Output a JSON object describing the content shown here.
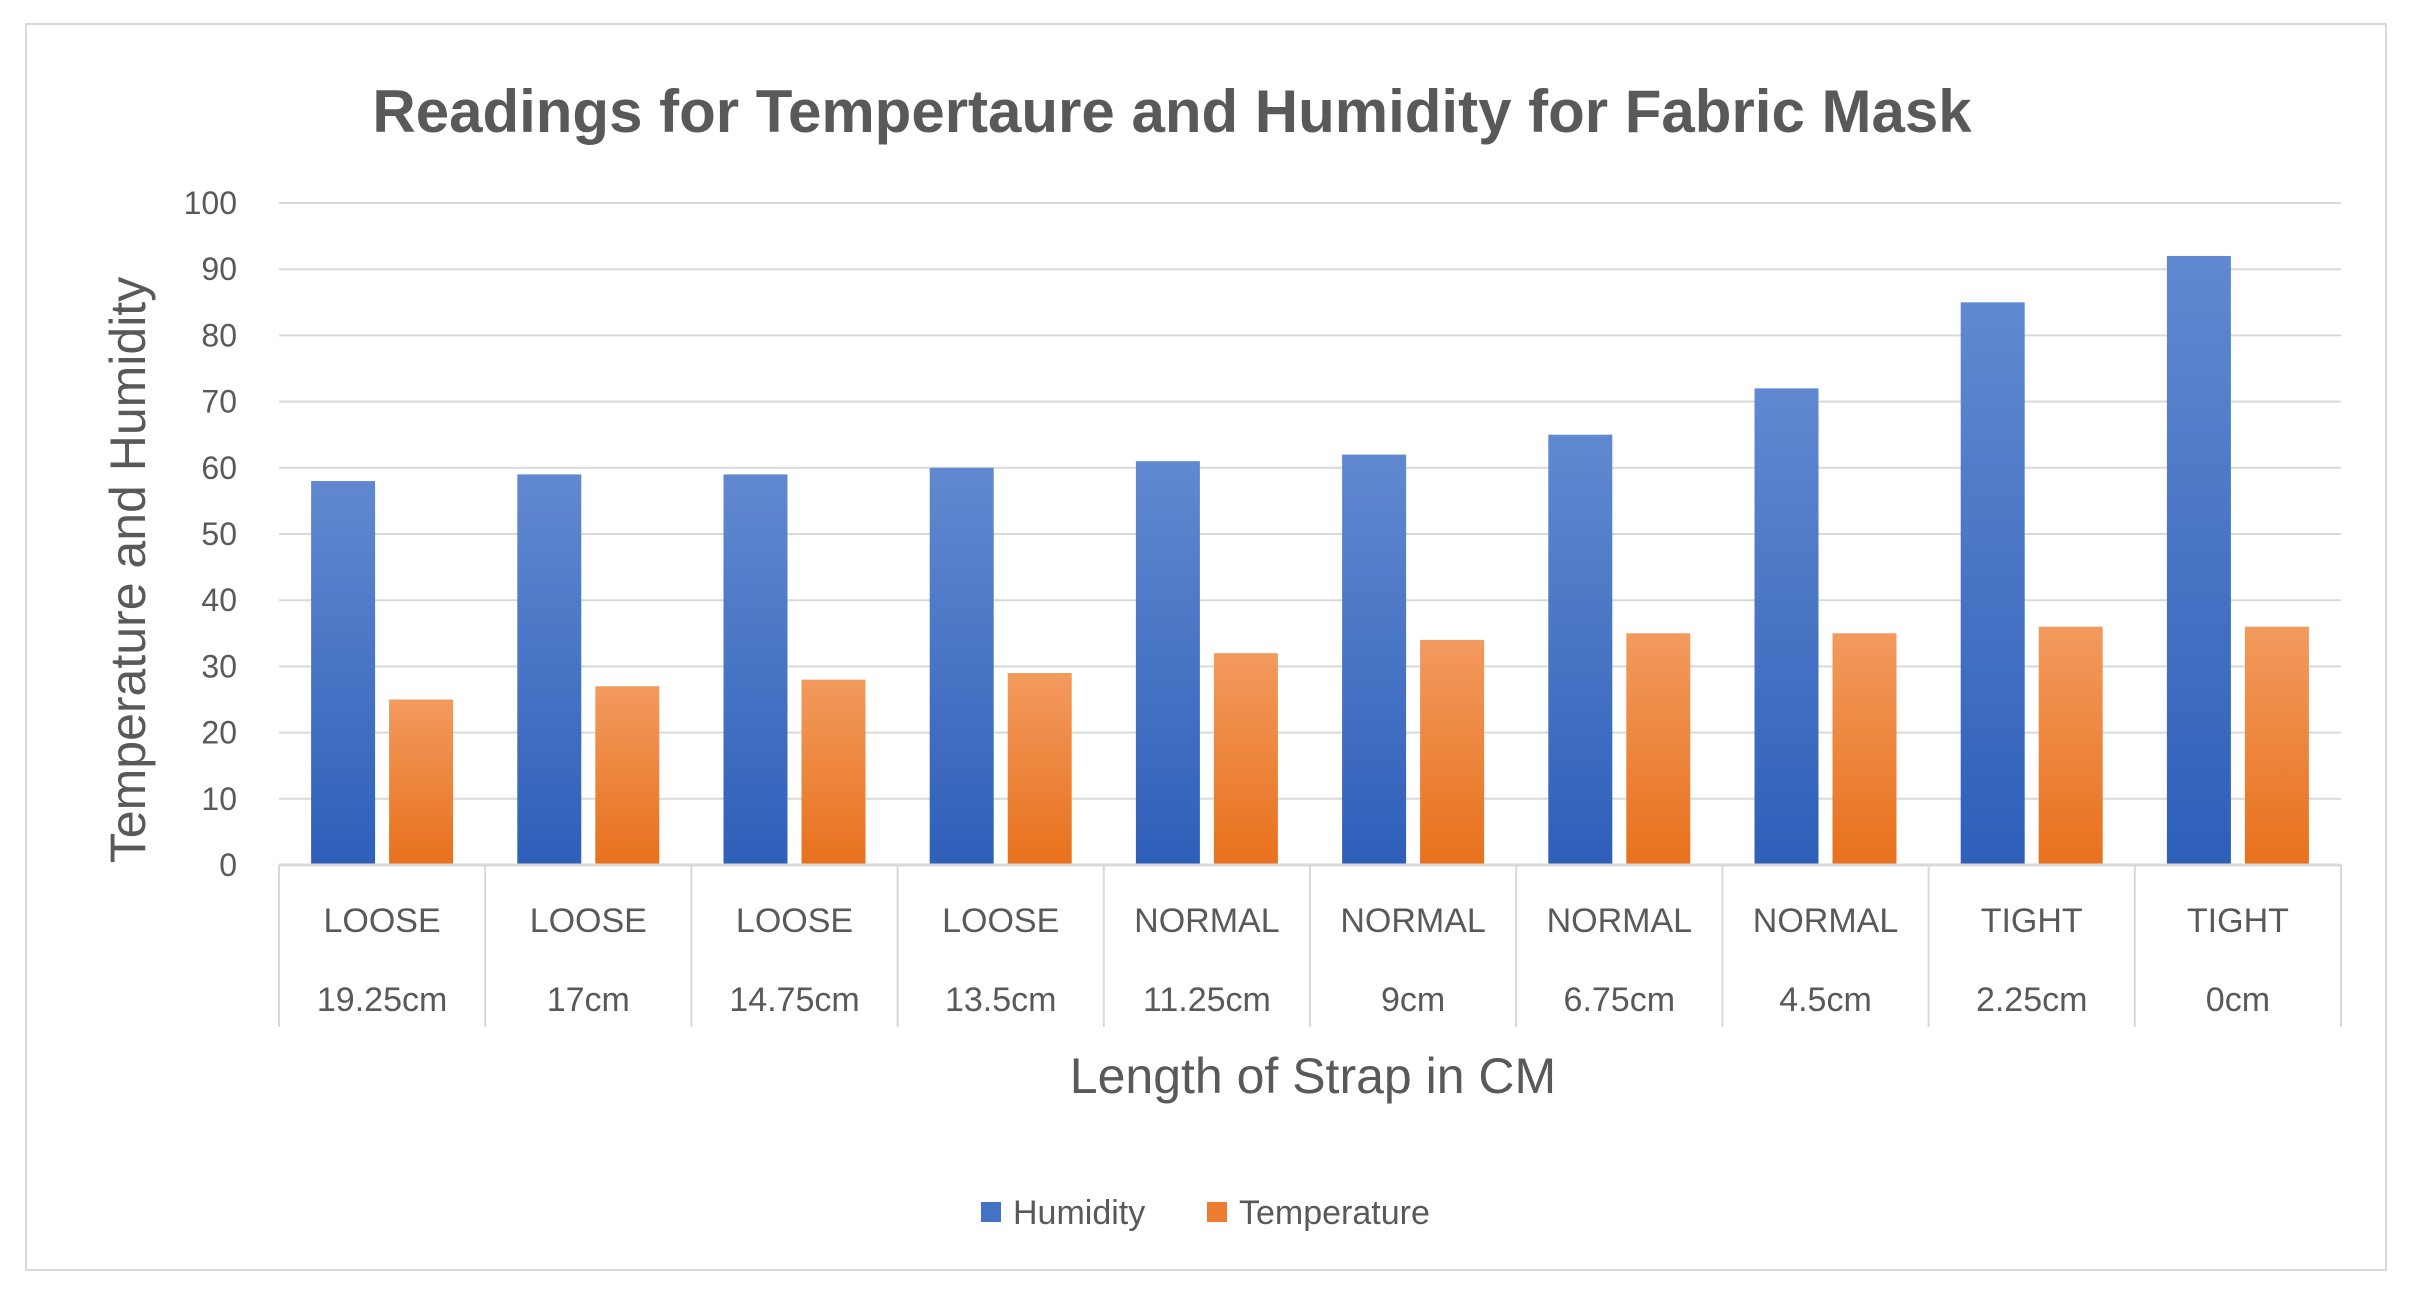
{
  "chart_data": {
    "type": "bar",
    "title": "Readings for Tempertaure and Humidity for Fabric Mask",
    "xlabel": "Length of Strap in CM",
    "ylabel": "Temperature and Humidity",
    "ylim": [
      0,
      100
    ],
    "yticks": [
      "0",
      "10",
      "20",
      "30",
      "40",
      "50",
      "60",
      "70",
      "80",
      "90",
      "100"
    ],
    "grid": true,
    "legend_position": "bottom",
    "categories": [
      {
        "group": "LOOSE",
        "label": "19.25cm"
      },
      {
        "group": "LOOSE",
        "label": "17cm"
      },
      {
        "group": "LOOSE",
        "label": "14.75cm"
      },
      {
        "group": "LOOSE",
        "label": "13.5cm"
      },
      {
        "group": "NORMAL",
        "label": "11.25cm"
      },
      {
        "group": "NORMAL",
        "label": "9cm"
      },
      {
        "group": "NORMAL",
        "label": "6.75cm"
      },
      {
        "group": "NORMAL",
        "label": "4.5cm"
      },
      {
        "group": "TIGHT",
        "label": "2.25cm"
      },
      {
        "group": "TIGHT",
        "label": "0cm"
      }
    ],
    "series": [
      {
        "name": "Humidity",
        "color": "#4472c4",
        "values": [
          58,
          59,
          59,
          60,
          61,
          62,
          65,
          72,
          85,
          92
        ]
      },
      {
        "name": "Temperature",
        "color": "#ed7d31",
        "values": [
          25,
          27,
          28,
          29,
          32,
          34,
          35,
          35,
          36,
          36
        ]
      }
    ]
  }
}
